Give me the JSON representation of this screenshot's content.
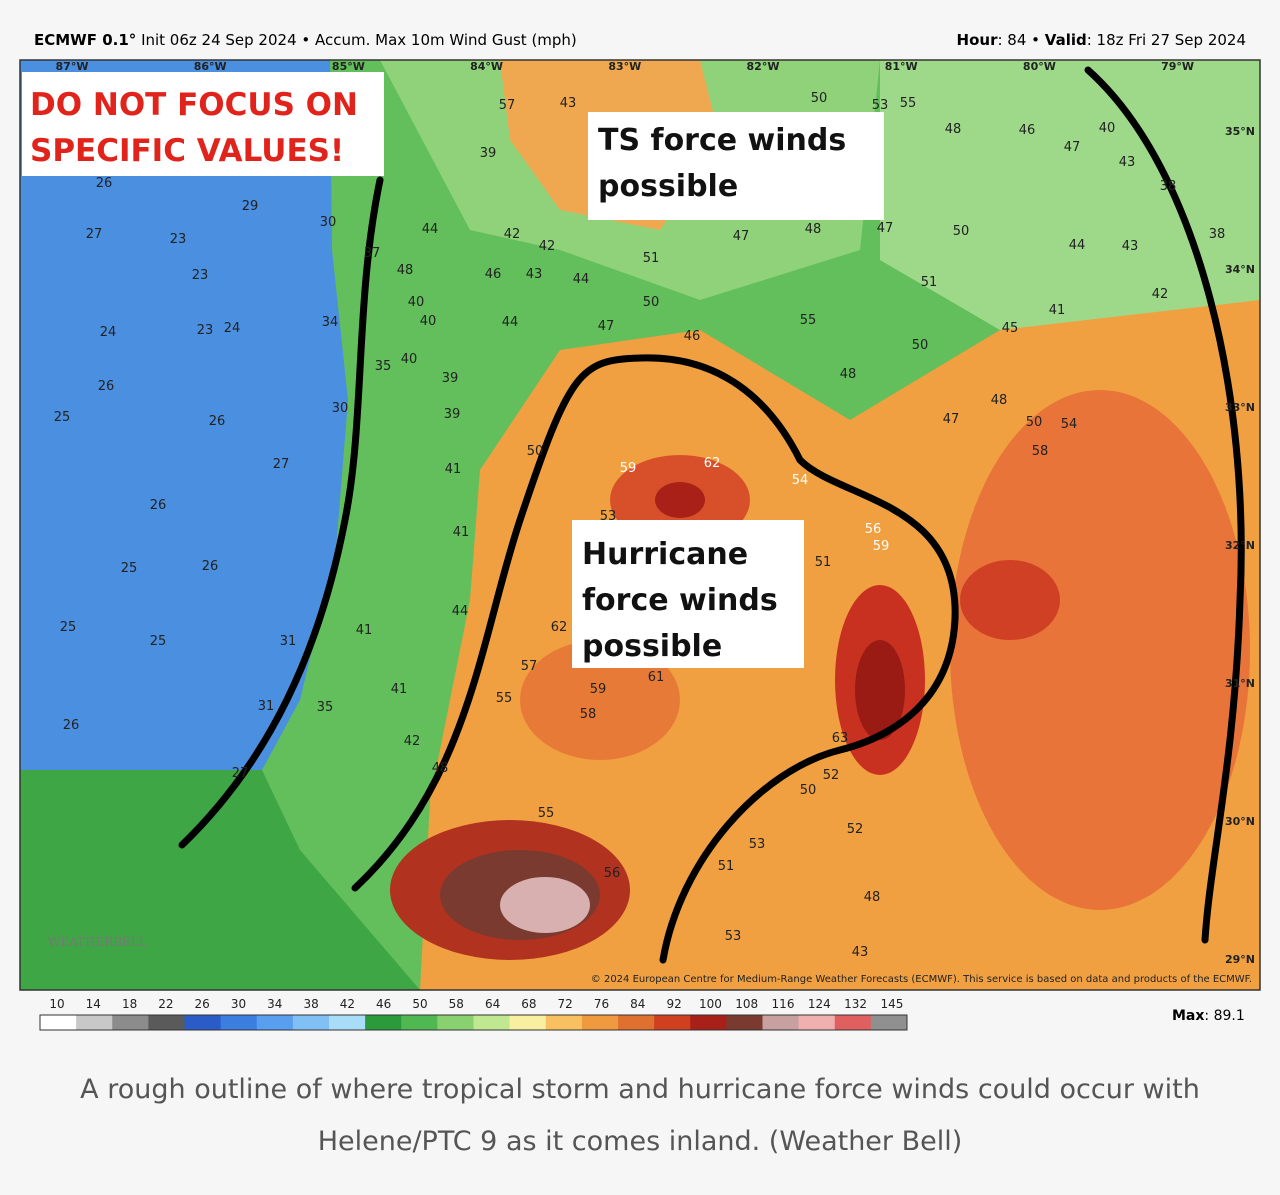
{
  "header": {
    "model": "ECMWF 0.1°",
    "description": "Init 06z 24 Sep 2024 • Accum. Max 10m Wind Gust (mph)",
    "hour_label": "Hour",
    "hour_value": ": 84 •",
    "valid_label": "Valid",
    "valid_value": ": 18z Fri 27 Sep 2024"
  },
  "map": {
    "longitudes": [
      "87°W",
      "86°W",
      "85°W",
      "84°W",
      "83°W",
      "82°W",
      "81°W",
      "80°W",
      "79°W"
    ],
    "latitudes": [
      "35°N",
      "34°N",
      "33°N",
      "32°N",
      "31°N",
      "30°N",
      "29°N"
    ],
    "annotations": [
      "DO NOT FOCUS ON SPECIFIC VALUES!",
      "TS force winds possible",
      "Hurricane force winds possible"
    ],
    "values": [
      57,
      43,
      50,
      53,
      55,
      48,
      46,
      40,
      47,
      43,
      39,
      26,
      27,
      23,
      29,
      30,
      23,
      24,
      23,
      24,
      26,
      25,
      26,
      27,
      26,
      25,
      26,
      25,
      25,
      26,
      34,
      37,
      44,
      42,
      42,
      51,
      46,
      43,
      44,
      48,
      40,
      40,
      44,
      47,
      46,
      50,
      55,
      47,
      48,
      47,
      50,
      51,
      44,
      43,
      41,
      42,
      45,
      50,
      48,
      48,
      47,
      50,
      54,
      40,
      39,
      39,
      41,
      41,
      44,
      41,
      41,
      42,
      48,
      35,
      50,
      59,
      62,
      54,
      53,
      51,
      62,
      57,
      55,
      59,
      61,
      58,
      55,
      56,
      51,
      53,
      53,
      50,
      52,
      48,
      43,
      38,
      38,
      30,
      31,
      31,
      27,
      35,
      58,
      56,
      59,
      63,
      52
    ],
    "watermark": "WEATHERBELL",
    "copyright": "© 2024 European Centre for Medium-Range Weather Forecasts (ECMWF). This service is based on data and products of the ECMWF."
  },
  "legend": {
    "labels": [
      "10",
      "14",
      "18",
      "22",
      "26",
      "30",
      "34",
      "38",
      "42",
      "46",
      "50",
      "58",
      "64",
      "68",
      "72",
      "76",
      "84",
      "92",
      "100",
      "108",
      "116",
      "124",
      "132",
      "145"
    ],
    "colors": [
      "#ffffff",
      "#c8c8c8",
      "#8c8c8c",
      "#5a5a5a",
      "#2a5cc8",
      "#3c7ee0",
      "#5a9ef0",
      "#80c0f5",
      "#a8dcf8",
      "#2a9a3a",
      "#50b850",
      "#88d070",
      "#c0e890",
      "#f8f0a0",
      "#f8c060",
      "#f09a40",
      "#e07030",
      "#d04020",
      "#a82018",
      "#7a3a30",
      "#c8a0a0",
      "#f0b0b0",
      "#e06060",
      "#909090"
    ],
    "max_label": "Max",
    "max_value": ": 89.1"
  },
  "caption": "A rough outline of where tropical storm and hurricane force winds could occur with Helene/PTC 9 as it comes inland. (Weather Bell)"
}
